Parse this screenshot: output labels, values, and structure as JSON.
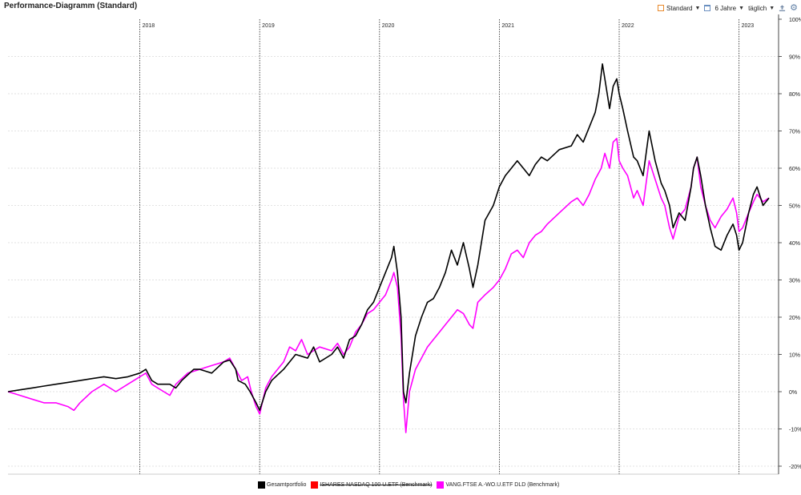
{
  "header": {
    "title": "Performance-Diagramm (Standard)",
    "profile_label": "Standard",
    "period_label": "6 Jahre",
    "interval_label": "täglich",
    "icons": [
      "profile-square-icon",
      "calendar-icon",
      "export-icon",
      "gear-icon"
    ]
  },
  "chart_data": {
    "type": "line",
    "xlim": [
      2016.9,
      2023.33
    ],
    "ylim": [
      -22,
      100
    ],
    "grid": true,
    "y_ticks": [
      "-20%",
      "-10%",
      "0%",
      "10%",
      "20%",
      "30%",
      "40%",
      "50%",
      "60%",
      "70%",
      "80%",
      "90%",
      "100%"
    ],
    "y_tick_values": [
      -20,
      -10,
      0,
      10,
      20,
      30,
      40,
      50,
      60,
      70,
      80,
      90,
      100
    ],
    "year_labels": [
      "2018",
      "2019",
      "2020",
      "2021",
      "2022",
      "2023"
    ],
    "year_values": [
      2018.0,
      2019.0,
      2020.0,
      2021.0,
      2022.0,
      2023.0
    ],
    "legend_placement": "bottom",
    "series": [
      {
        "name": "Gesamtportfolio",
        "color": "#000000",
        "points": [
          [
            2016.9,
            0
          ],
          [
            2017.0,
            0.5
          ],
          [
            2017.1,
            1
          ],
          [
            2017.2,
            1.5
          ],
          [
            2017.3,
            2
          ],
          [
            2017.4,
            2.5
          ],
          [
            2017.5,
            3
          ],
          [
            2017.6,
            3.5
          ],
          [
            2017.7,
            4
          ],
          [
            2017.8,
            3.5
          ],
          [
            2017.9,
            4
          ],
          [
            2018.0,
            5
          ],
          [
            2018.05,
            6
          ],
          [
            2018.1,
            3
          ],
          [
            2018.15,
            2
          ],
          [
            2018.25,
            2
          ],
          [
            2018.3,
            1
          ],
          [
            2018.35,
            3
          ],
          [
            2018.45,
            6
          ],
          [
            2018.5,
            6
          ],
          [
            2018.6,
            5
          ],
          [
            2018.7,
            8
          ],
          [
            2018.75,
            8.5
          ],
          [
            2018.8,
            6
          ],
          [
            2018.82,
            3
          ],
          [
            2018.88,
            2
          ],
          [
            2018.92,
            0
          ],
          [
            2018.97,
            -3
          ],
          [
            2019.0,
            -5
          ],
          [
            2019.05,
            0
          ],
          [
            2019.1,
            3
          ],
          [
            2019.2,
            6
          ],
          [
            2019.3,
            10
          ],
          [
            2019.4,
            9
          ],
          [
            2019.45,
            12
          ],
          [
            2019.5,
            8
          ],
          [
            2019.6,
            10
          ],
          [
            2019.65,
            12
          ],
          [
            2019.7,
            9
          ],
          [
            2019.75,
            14
          ],
          [
            2019.8,
            15
          ],
          [
            2019.85,
            18
          ],
          [
            2019.9,
            22
          ],
          [
            2019.95,
            24
          ],
          [
            2020.0,
            28
          ],
          [
            2020.05,
            32
          ],
          [
            2020.1,
            36
          ],
          [
            2020.12,
            39
          ],
          [
            2020.15,
            32
          ],
          [
            2020.18,
            20
          ],
          [
            2020.2,
            0
          ],
          [
            2020.22,
            -3
          ],
          [
            2020.25,
            5
          ],
          [
            2020.3,
            15
          ],
          [
            2020.35,
            20
          ],
          [
            2020.4,
            24
          ],
          [
            2020.45,
            25
          ],
          [
            2020.5,
            28
          ],
          [
            2020.55,
            32
          ],
          [
            2020.6,
            38
          ],
          [
            2020.65,
            34
          ],
          [
            2020.7,
            40
          ],
          [
            2020.75,
            33
          ],
          [
            2020.78,
            28
          ],
          [
            2020.82,
            34
          ],
          [
            2020.88,
            46
          ],
          [
            2020.95,
            50
          ],
          [
            2021.0,
            55
          ],
          [
            2021.05,
            58
          ],
          [
            2021.1,
            60
          ],
          [
            2021.15,
            62
          ],
          [
            2021.2,
            60
          ],
          [
            2021.25,
            58
          ],
          [
            2021.3,
            61
          ],
          [
            2021.35,
            63
          ],
          [
            2021.4,
            62
          ],
          [
            2021.5,
            65
          ],
          [
            2021.6,
            66
          ],
          [
            2021.65,
            69
          ],
          [
            2021.7,
            67
          ],
          [
            2021.75,
            71
          ],
          [
            2021.8,
            75
          ],
          [
            2021.83,
            80
          ],
          [
            2021.86,
            88
          ],
          [
            2021.88,
            84
          ],
          [
            2021.92,
            76
          ],
          [
            2021.95,
            82
          ],
          [
            2021.98,
            84
          ],
          [
            2022.0,
            80
          ],
          [
            2022.03,
            76
          ],
          [
            2022.07,
            70
          ],
          [
            2022.12,
            63
          ],
          [
            2022.15,
            62
          ],
          [
            2022.2,
            58
          ],
          [
            2022.25,
            70
          ],
          [
            2022.3,
            62
          ],
          [
            2022.35,
            56
          ],
          [
            2022.38,
            54
          ],
          [
            2022.42,
            50
          ],
          [
            2022.45,
            44
          ],
          [
            2022.5,
            48
          ],
          [
            2022.55,
            46
          ],
          [
            2022.6,
            55
          ],
          [
            2022.62,
            60
          ],
          [
            2022.65,
            63
          ],
          [
            2022.68,
            58
          ],
          [
            2022.72,
            50
          ],
          [
            2022.76,
            44
          ],
          [
            2022.8,
            39
          ],
          [
            2022.85,
            38
          ],
          [
            2022.9,
            42
          ],
          [
            2022.95,
            45
          ],
          [
            2022.98,
            42
          ],
          [
            2023.0,
            38
          ],
          [
            2023.03,
            40
          ],
          [
            2023.08,
            48
          ],
          [
            2023.12,
            53
          ],
          [
            2023.15,
            55
          ],
          [
            2023.2,
            50
          ],
          [
            2023.25,
            52
          ]
        ]
      },
      {
        "name": "ISHARES NASDAQ 100 U.ETF (Benchmark)",
        "color": "#ff0000",
        "hidden": true,
        "points": []
      },
      {
        "name": "VANG.FTSE A.-WO.U.ETF DLD (Benchmark)",
        "color": "#ff00ff",
        "points": [
          [
            2016.9,
            0
          ],
          [
            2017.0,
            -1
          ],
          [
            2017.1,
            -2
          ],
          [
            2017.2,
            -3
          ],
          [
            2017.3,
            -3
          ],
          [
            2017.4,
            -4
          ],
          [
            2017.45,
            -5
          ],
          [
            2017.5,
            -3
          ],
          [
            2017.6,
            0
          ],
          [
            2017.7,
            2
          ],
          [
            2017.8,
            0
          ],
          [
            2017.9,
            2
          ],
          [
            2018.0,
            4
          ],
          [
            2018.05,
            5
          ],
          [
            2018.1,
            2
          ],
          [
            2018.15,
            1
          ],
          [
            2018.2,
            0
          ],
          [
            2018.25,
            -1
          ],
          [
            2018.3,
            2
          ],
          [
            2018.4,
            5
          ],
          [
            2018.5,
            6
          ],
          [
            2018.6,
            7
          ],
          [
            2018.7,
            8
          ],
          [
            2018.75,
            9
          ],
          [
            2018.8,
            6
          ],
          [
            2018.85,
            3
          ],
          [
            2018.9,
            4
          ],
          [
            2018.93,
            0
          ],
          [
            2018.97,
            -4
          ],
          [
            2019.0,
            -6
          ],
          [
            2019.05,
            1
          ],
          [
            2019.1,
            4
          ],
          [
            2019.2,
            8
          ],
          [
            2019.25,
            12
          ],
          [
            2019.3,
            11
          ],
          [
            2019.35,
            14
          ],
          [
            2019.4,
            10
          ],
          [
            2019.5,
            12
          ],
          [
            2019.6,
            11
          ],
          [
            2019.65,
            13
          ],
          [
            2019.7,
            10
          ],
          [
            2019.75,
            12
          ],
          [
            2019.8,
            16
          ],
          [
            2019.85,
            18
          ],
          [
            2019.9,
            21
          ],
          [
            2019.95,
            22
          ],
          [
            2020.0,
            24
          ],
          [
            2020.05,
            26
          ],
          [
            2020.1,
            30
          ],
          [
            2020.12,
            32
          ],
          [
            2020.15,
            28
          ],
          [
            2020.18,
            15
          ],
          [
            2020.2,
            -2
          ],
          [
            2020.22,
            -11
          ],
          [
            2020.25,
            0
          ],
          [
            2020.3,
            6
          ],
          [
            2020.35,
            9
          ],
          [
            2020.4,
            12
          ],
          [
            2020.45,
            14
          ],
          [
            2020.5,
            16
          ],
          [
            2020.55,
            18
          ],
          [
            2020.6,
            20
          ],
          [
            2020.65,
            22
          ],
          [
            2020.7,
            21
          ],
          [
            2020.75,
            18
          ],
          [
            2020.78,
            17
          ],
          [
            2020.82,
            24
          ],
          [
            2020.88,
            26
          ],
          [
            2020.95,
            28
          ],
          [
            2021.0,
            30
          ],
          [
            2021.05,
            33
          ],
          [
            2021.1,
            37
          ],
          [
            2021.15,
            38
          ],
          [
            2021.2,
            36
          ],
          [
            2021.25,
            40
          ],
          [
            2021.3,
            42
          ],
          [
            2021.35,
            43
          ],
          [
            2021.4,
            45
          ],
          [
            2021.5,
            48
          ],
          [
            2021.6,
            51
          ],
          [
            2021.65,
            52
          ],
          [
            2021.7,
            50
          ],
          [
            2021.75,
            53
          ],
          [
            2021.8,
            57
          ],
          [
            2021.85,
            60
          ],
          [
            2021.88,
            64
          ],
          [
            2021.92,
            60
          ],
          [
            2021.95,
            67
          ],
          [
            2021.98,
            68
          ],
          [
            2022.0,
            62
          ],
          [
            2022.03,
            60
          ],
          [
            2022.07,
            58
          ],
          [
            2022.12,
            52
          ],
          [
            2022.15,
            54
          ],
          [
            2022.2,
            50
          ],
          [
            2022.25,
            62
          ],
          [
            2022.3,
            57
          ],
          [
            2022.35,
            52
          ],
          [
            2022.38,
            50
          ],
          [
            2022.42,
            44
          ],
          [
            2022.45,
            41
          ],
          [
            2022.5,
            47
          ],
          [
            2022.55,
            49
          ],
          [
            2022.6,
            55
          ],
          [
            2022.62,
            60
          ],
          [
            2022.65,
            63
          ],
          [
            2022.68,
            55
          ],
          [
            2022.72,
            50
          ],
          [
            2022.76,
            46
          ],
          [
            2022.8,
            44
          ],
          [
            2022.85,
            47
          ],
          [
            2022.9,
            49
          ],
          [
            2022.95,
            52
          ],
          [
            2022.98,
            48
          ],
          [
            2023.0,
            43
          ],
          [
            2023.03,
            44
          ],
          [
            2023.08,
            48
          ],
          [
            2023.12,
            51
          ],
          [
            2023.15,
            53
          ],
          [
            2023.2,
            51
          ],
          [
            2023.25,
            52
          ]
        ]
      }
    ]
  }
}
